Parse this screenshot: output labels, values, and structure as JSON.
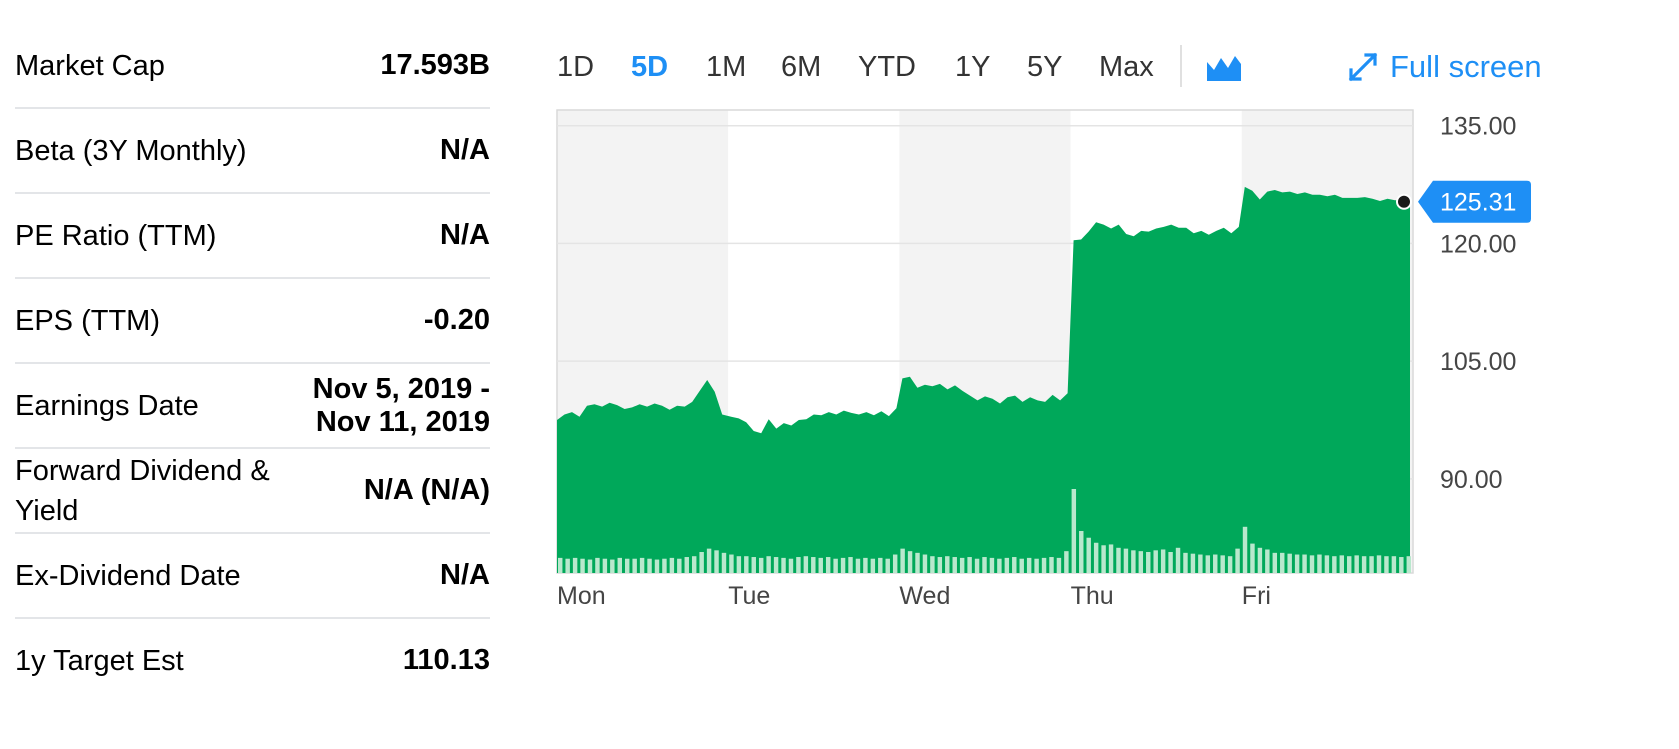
{
  "stats": [
    {
      "label": "Market Cap",
      "value": "17.593B"
    },
    {
      "label": "Beta (3Y Monthly)",
      "value": "N/A"
    },
    {
      "label": "PE Ratio (TTM)",
      "value": "N/A"
    },
    {
      "label": "EPS (TTM)",
      "value": "-0.20"
    },
    {
      "label": "Earnings Date",
      "value": "Nov 5, 2019 - Nov 11, 2019"
    },
    {
      "label": "Forward Dividend & Yield",
      "value": "N/A (N/A)"
    },
    {
      "label": "Ex-Dividend Date",
      "value": "N/A"
    },
    {
      "label": "1y Target Est",
      "value": "110.13"
    }
  ],
  "toolbar": {
    "ranges": [
      "1D",
      "5D",
      "1M",
      "6M",
      "YTD",
      "1Y",
      "5Y",
      "Max"
    ],
    "active_range": "5D",
    "chart_type_icon": "mountain-chart-icon",
    "fullscreen_icon": "expand-arrows-icon",
    "fullscreen_label": "Full screen"
  },
  "colors": {
    "accent": "#1e8ff5",
    "area": "#00a85a",
    "volume": "#b9e8cd",
    "band": "#f3f3f3"
  },
  "chart_data": {
    "type": "area",
    "x_labels": [
      "Mon",
      "Tue",
      "Wed",
      "Thu",
      "Fri"
    ],
    "y_ticks": [
      "135.00",
      "120.00",
      "105.00",
      "90.00"
    ],
    "y_tick_values": [
      135,
      120,
      105,
      90
    ],
    "ylim": [
      78,
      137
    ],
    "current_price": "125.31",
    "current_value": 125.31,
    "grid": true,
    "days": [
      {
        "day": "Mon",
        "prices": [
          97.5,
          98.2,
          98.5,
          97.9,
          99.3,
          99.5,
          99.2,
          99.7,
          99.4,
          98.9,
          99.1,
          99.5,
          99.2,
          99.6,
          99.3,
          98.8,
          99.3,
          99.2,
          99.8,
          101.2,
          102.6,
          101.1,
          98.2
        ]
      },
      {
        "day": "Tue",
        "prices": [
          97.9,
          97.7,
          97.2,
          96.1,
          95.8,
          97.6,
          96.4,
          97.1,
          96.8,
          97.5,
          97.6,
          98.2,
          98.1,
          98.5,
          98.2,
          98.7,
          98.4,
          98.2,
          98.5,
          98.1,
          98.6,
          98.0,
          99.0
        ]
      },
      {
        "day": "Wed",
        "prices": [
          102.8,
          103.0,
          101.6,
          102.0,
          101.8,
          102.1,
          101.4,
          101.9,
          101.2,
          100.6,
          100.0,
          100.5,
          100.2,
          99.6,
          100.4,
          100.6,
          99.8,
          100.4,
          100.0,
          99.8,
          100.7,
          100.0,
          100.9
        ]
      },
      {
        "day": "Thu",
        "prices": [
          120.4,
          120.5,
          121.5,
          122.7,
          122.4,
          121.9,
          122.4,
          121.2,
          120.9,
          121.6,
          121.5,
          121.9,
          122.1,
          122.4,
          122.0,
          122.0,
          121.3,
          121.6,
          121.1,
          121.6,
          122.0,
          121.3,
          122.1
        ]
      },
      {
        "day": "Fri",
        "prices": [
          127.2,
          126.7,
          125.6,
          126.6,
          126.8,
          126.5,
          126.6,
          126.3,
          126.5,
          126.2,
          126.2,
          126.0,
          126.2,
          125.8,
          125.8,
          125.8,
          125.9,
          125.7,
          125.4,
          125.7,
          125.5,
          125.6,
          125.31
        ]
      }
    ],
    "volume_relative": [
      [
        0.18,
        0.17,
        0.18,
        0.17,
        0.16,
        0.18,
        0.17,
        0.16,
        0.18,
        0.17,
        0.17,
        0.18,
        0.17,
        0.16,
        0.17,
        0.18,
        0.17,
        0.19,
        0.2,
        0.25,
        0.29,
        0.27,
        0.24
      ],
      [
        0.22,
        0.2,
        0.2,
        0.19,
        0.18,
        0.2,
        0.19,
        0.18,
        0.17,
        0.19,
        0.2,
        0.19,
        0.18,
        0.19,
        0.17,
        0.18,
        0.19,
        0.17,
        0.18,
        0.17,
        0.18,
        0.17,
        0.22
      ],
      [
        0.29,
        0.26,
        0.24,
        0.22,
        0.2,
        0.19,
        0.2,
        0.19,
        0.18,
        0.19,
        0.17,
        0.19,
        0.18,
        0.17,
        0.18,
        0.19,
        0.17,
        0.18,
        0.17,
        0.18,
        0.19,
        0.18,
        0.26
      ],
      [
        1.0,
        0.5,
        0.42,
        0.36,
        0.33,
        0.34,
        0.3,
        0.29,
        0.27,
        0.26,
        0.25,
        0.27,
        0.28,
        0.25,
        0.3,
        0.24,
        0.23,
        0.22,
        0.21,
        0.22,
        0.21,
        0.2,
        0.29
      ],
      [
        0.55,
        0.35,
        0.3,
        0.28,
        0.24,
        0.24,
        0.23,
        0.22,
        0.22,
        0.21,
        0.22,
        0.21,
        0.2,
        0.21,
        0.2,
        0.21,
        0.2,
        0.2,
        0.21,
        0.2,
        0.2,
        0.19,
        0.2
      ]
    ]
  }
}
